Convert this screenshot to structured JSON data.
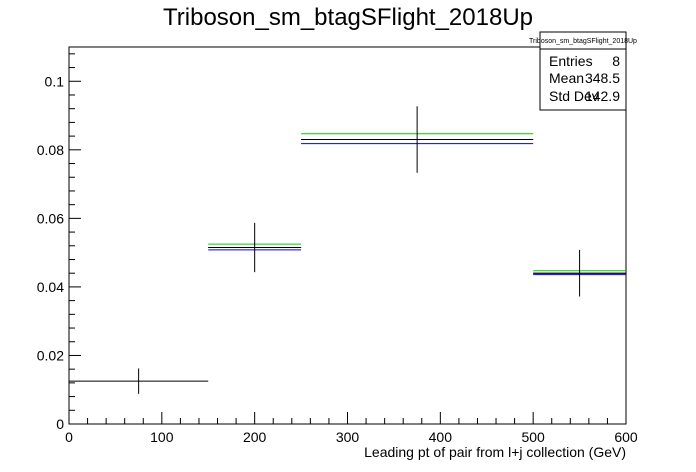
{
  "chart_data": {
    "type": "histogram",
    "title": "Triboson_sm_btagSFlight_2018Up",
    "xlabel": "Leading pt of pair from l+j collection (GeV)",
    "ylabel": "",
    "xlim": [
      0,
      600
    ],
    "ylim": [
      0,
      0.11
    ],
    "x_ticks": [
      0,
      100,
      200,
      300,
      400,
      500,
      600
    ],
    "x_tick_labels": [
      "0",
      "100",
      "200",
      "300",
      "400",
      "500",
      "600"
    ],
    "y_ticks": [
      0,
      0.02,
      0.04,
      0.06,
      0.08,
      0.1
    ],
    "y_tick_labels": [
      "0",
      "0.02",
      "0.04",
      "0.06",
      "0.08",
      "0.1"
    ],
    "grid": false,
    "legend_placement": "top-right",
    "stats_box": {
      "name": "Triboson_sm_btagSFlight_2018Up",
      "rows": [
        {
          "label": "Entries",
          "value": "8"
        },
        {
          "label": "Mean",
          "value": "348.5"
        },
        {
          "label": "Std Dev",
          "value": "142.9"
        }
      ]
    },
    "bins": [
      {
        "xlow": 0,
        "xhigh": 150,
        "center": 75,
        "value": 0.0125,
        "err": 0.0037
      },
      {
        "xlow": 150,
        "xhigh": 250,
        "center": 200,
        "value": 0.0515,
        "err": 0.0072
      },
      {
        "xlow": 250,
        "xhigh": 500,
        "center": 375,
        "value": 0.083,
        "err": 0.0097
      },
      {
        "xlow": 500,
        "xhigh": 600,
        "center": 550,
        "value": 0.044,
        "err": 0.0068
      }
    ],
    "variation_lines": [
      {
        "color": "#00cc00",
        "values": [
          null,
          0.0525,
          0.0847,
          0.0447
        ]
      },
      {
        "color": "#0000ff",
        "values": [
          null,
          0.0508,
          0.0818,
          0.0436
        ]
      },
      {
        "color": "#000000",
        "values": [
          null,
          0.0515,
          0.083,
          0.044
        ]
      }
    ]
  }
}
